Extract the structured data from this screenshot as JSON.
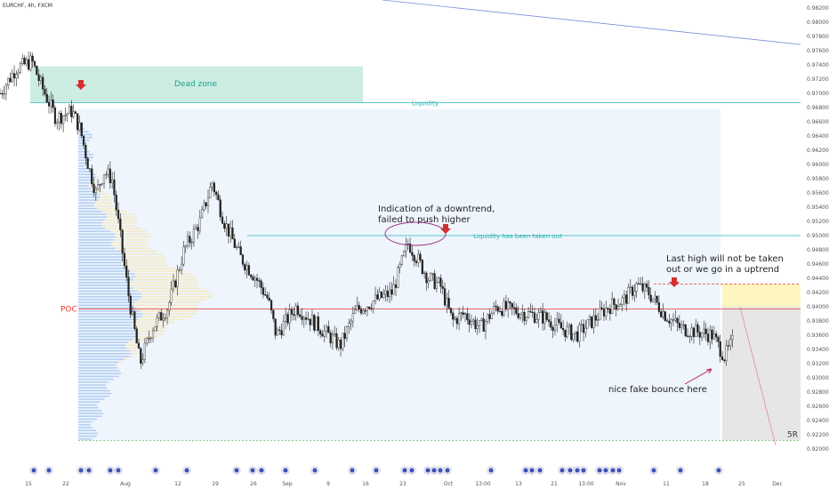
{
  "header": {
    "symbol": "EURCHF, 4h, FXCM"
  },
  "colors": {
    "candle": "#222222",
    "dead_zone": "#c8ebe0",
    "liquidity_line": "#29b6b6",
    "poc_line": "#e53935",
    "arrow": "#d32f2f",
    "target_box": "#fff5c0",
    "grey_box": "#e6e6e6",
    "range_box": "#eef5fd",
    "volume_blue": "#a9c8ee",
    "volume_yellow": "#f6e7b8",
    "trend_line": "#7b8fd6",
    "ellipse": "#9c2e7e",
    "event_icon": "#3f51b5"
  },
  "chart_data": {
    "type": "candlestick",
    "title": "EURCHF, 4h, FXCM",
    "x_ticks": [
      "15",
      "22",
      "Aug",
      "12",
      "19",
      "26",
      "Sep",
      "9",
      "16",
      "23",
      "Oct",
      "13:00",
      "13",
      "21",
      "13:00",
      "Nov",
      "11",
      "18",
      "25",
      "Dec"
    ],
    "y_ticks": [
      0.982,
      0.98,
      0.978,
      0.976,
      0.974,
      0.972,
      0.97,
      0.968,
      0.966,
      0.964,
      0.962,
      0.96,
      0.958,
      0.956,
      0.954,
      0.952,
      0.95,
      0.948,
      0.946,
      0.944,
      0.942,
      0.94,
      0.938,
      0.936,
      0.934,
      0.932,
      0.93,
      0.928,
      0.926,
      0.924,
      0.922,
      0.92
    ],
    "ylim": [
      0.92,
      0.982
    ],
    "price_path": [
      [
        0,
        0.97
      ],
      [
        0.02,
        0.9735
      ],
      [
        0.04,
        0.9745
      ],
      [
        0.05,
        0.9715
      ],
      [
        0.07,
        0.9665
      ],
      [
        0.09,
        0.9675
      ],
      [
        0.1,
        0.965
      ],
      [
        0.11,
        0.96
      ],
      [
        0.12,
        0.956
      ],
      [
        0.13,
        0.959
      ],
      [
        0.14,
        0.958
      ],
      [
        0.16,
        0.942
      ],
      [
        0.175,
        0.932
      ],
      [
        0.19,
        0.937
      ],
      [
        0.21,
        0.94
      ],
      [
        0.23,
        0.948
      ],
      [
        0.25,
        0.952
      ],
      [
        0.265,
        0.9575
      ],
      [
        0.28,
        0.952
      ],
      [
        0.3,
        0.947
      ],
      [
        0.32,
        0.944
      ],
      [
        0.335,
        0.941
      ],
      [
        0.345,
        0.936
      ],
      [
        0.37,
        0.94
      ],
      [
        0.4,
        0.937
      ],
      [
        0.425,
        0.9345
      ],
      [
        0.445,
        0.9395
      ],
      [
        0.47,
        0.941
      ],
      [
        0.49,
        0.942
      ],
      [
        0.51,
        0.949
      ],
      [
        0.52,
        0.947
      ],
      [
        0.535,
        0.944
      ],
      [
        0.55,
        0.943
      ],
      [
        0.565,
        0.938
      ],
      [
        0.58,
        0.939
      ],
      [
        0.6,
        0.937
      ],
      [
        0.62,
        0.94
      ],
      [
        0.64,
        0.9395
      ],
      [
        0.66,
        0.939
      ],
      [
        0.68,
        0.9385
      ],
      [
        0.7,
        0.937
      ],
      [
        0.72,
        0.936
      ],
      [
        0.74,
        0.938
      ],
      [
        0.76,
        0.94
      ],
      [
        0.78,
        0.941
      ],
      [
        0.795,
        0.943
      ],
      [
        0.81,
        0.942
      ],
      [
        0.83,
        0.939
      ],
      [
        0.85,
        0.937
      ],
      [
        0.87,
        0.9365
      ],
      [
        0.89,
        0.936
      ],
      [
        0.905,
        0.933
      ],
      [
        0.915,
        0.935
      ]
    ],
    "levels": [
      {
        "name": "Liquidity",
        "value": 0.9687
      },
      {
        "name": "Liquidity has been taken out",
        "value": 0.95
      },
      {
        "name": "POC",
        "value": 0.9397
      },
      {
        "name": "5R",
        "value": 0.9212
      }
    ],
    "zones": [
      {
        "name": "Dead zone",
        "y0": 0.9687,
        "y1": 0.9738
      },
      {
        "name": "target",
        "y0": 0.94,
        "y1": 0.9432
      },
      {
        "name": "stop",
        "y0": 0.9212,
        "y1": 0.94
      }
    ],
    "annotations": [
      {
        "text": "Indication of a downtrend,\nfailed to push higher"
      },
      {
        "text": "Last high will not be taken\nout or we go in a uptrend"
      },
      {
        "text": "nice fake bounce here"
      }
    ],
    "grid": false
  }
}
